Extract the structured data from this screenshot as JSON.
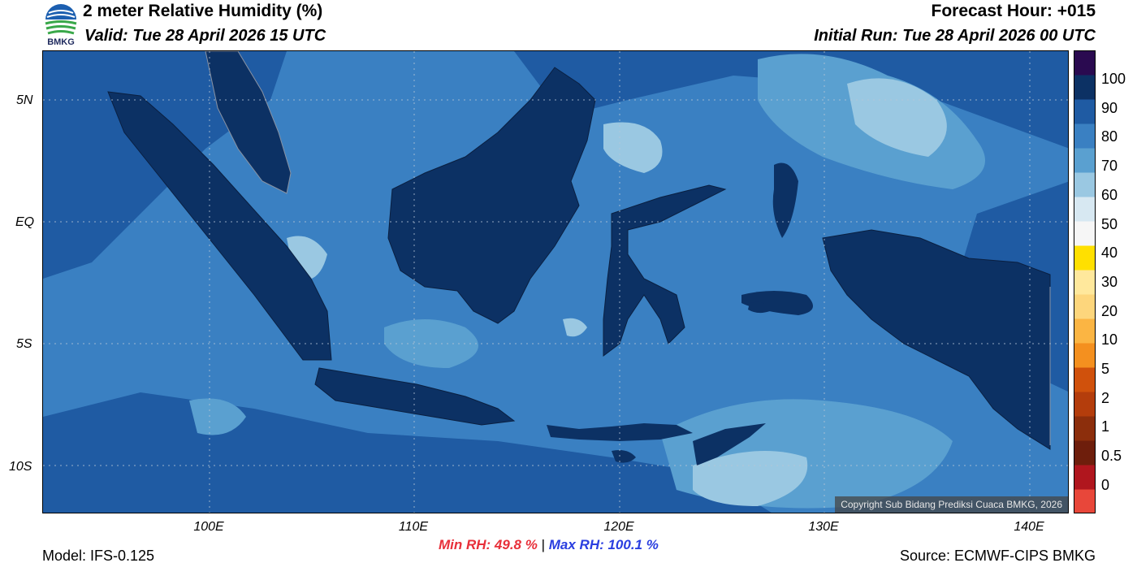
{
  "header": {
    "title": "2 meter Relative Humidity (%)",
    "valid": "Valid: Tue 28 April 2026 15 UTC",
    "forecast_hour": "Forecast Hour: +015",
    "initial_run": "Initial Run: Tue 28 April 2026 00 UTC"
  },
  "logo": {
    "text": "BMKG"
  },
  "map": {
    "lat_labels": [
      "5N",
      "EQ",
      "5S",
      "10S"
    ],
    "lon_labels": [
      "100E",
      "110E",
      "120E",
      "130E",
      "140E"
    ],
    "copyright": "Copyright Sub Bidang Prediksi Cuaca BMKG, 2026"
  },
  "colorbar": {
    "labels": [
      "100",
      "90",
      "80",
      "70",
      "60",
      "50",
      "40",
      "30",
      "20",
      "10",
      "5",
      "2",
      "1",
      "0.5",
      "0"
    ],
    "colors": [
      "#e8473a",
      "#b0161e",
      "#6e1e0c",
      "#8c2e0c",
      "#b43d0c",
      "#d0510c",
      "#f4901f",
      "#fbb543",
      "#fdd67c",
      "#ffe89c",
      "#ffe000",
      "#f6f6f6",
      "#d7e8f2",
      "#9ac8e2",
      "#5aa0d0",
      "#3a80c2",
      "#1f5ba3",
      "#0c3164",
      "#2a0a50"
    ]
  },
  "stats": {
    "min": "Min RH:  49.8 %",
    "separator": "|",
    "max": "Max RH: 100.1 %"
  },
  "footer": {
    "model": "Model: IFS-0.125",
    "source": "Source: ECMWF-CIPS BMKG"
  },
  "palette": {
    "ocean_mid": "#3a80c2",
    "ocean_dark": "#1f5ba3",
    "ocean_light": "#5aa0d0",
    "ocean_pale": "#9ac8e2",
    "land": "#0c3164",
    "min_color": "#e8303a",
    "max_color": "#2a3ee0"
  }
}
